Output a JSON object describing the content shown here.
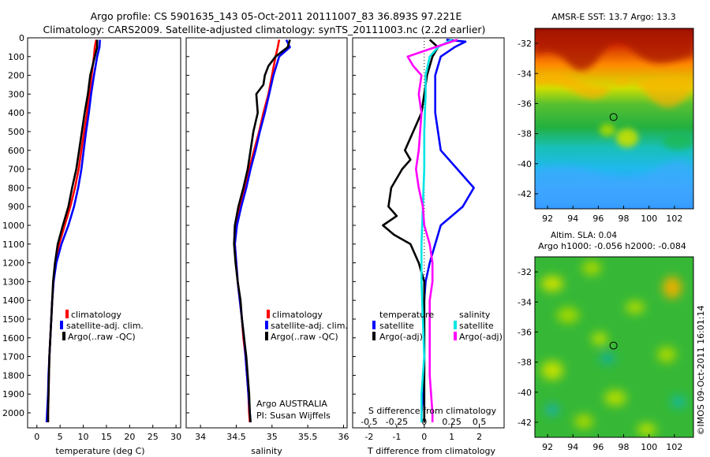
{
  "header": {
    "line1": "Argo profile: CS 5901635_143 05-Oct-2011 20111007_83 36.893S 97.221E",
    "line2": "Climatology: CARS2009. Satellite-adjusted climatology: synTS_20111003.nc (2.2d earlier)"
  },
  "colors": {
    "climatology": "#ff0000",
    "satellite": "#0000ff",
    "argo": "#000000",
    "sat_s": "#00e5e5",
    "argo_s": "#ff00ff"
  },
  "chart_data": [
    {
      "id": "temperature",
      "type": "line",
      "xlabel": "temperature (deg C)",
      "xlim": [
        -2,
        31
      ],
      "xticks": [
        0,
        5,
        10,
        15,
        20,
        25,
        30
      ],
      "ylim": [
        2080,
        0
      ],
      "yticks": [
        0,
        100,
        200,
        300,
        400,
        500,
        600,
        700,
        800,
        900,
        1000,
        1100,
        1200,
        1300,
        1400,
        1500,
        1600,
        1700,
        1800,
        1900,
        2000
      ],
      "legend": [
        "climatology",
        "satellite-adj. clim.",
        "Argo(..raw -QC)"
      ],
      "series": [
        {
          "name": "climatology",
          "color": "#ff0000",
          "points": [
            [
              12.8,
              10
            ],
            [
              12.5,
              50
            ],
            [
              12.3,
              100
            ],
            [
              11.8,
              200
            ],
            [
              11.3,
              300
            ],
            [
              10.8,
              400
            ],
            [
              10.2,
              500
            ],
            [
              9.6,
              600
            ],
            [
              9.0,
              700
            ],
            [
              8.2,
              800
            ],
            [
              7.2,
              900
            ],
            [
              6.0,
              1000
            ],
            [
              4.8,
              1100
            ],
            [
              4.0,
              1200
            ],
            [
              3.6,
              1300
            ],
            [
              3.3,
              1400
            ],
            [
              3.1,
              1500
            ],
            [
              2.9,
              1600
            ],
            [
              2.7,
              1700
            ],
            [
              2.6,
              1800
            ],
            [
              2.5,
              1900
            ],
            [
              2.4,
              2000
            ],
            [
              2.4,
              2050
            ]
          ]
        },
        {
          "name": "satellite-adj. clim.",
          "color": "#0000ff",
          "points": [
            [
              13.6,
              10
            ],
            [
              13.5,
              50
            ],
            [
              13.0,
              100
            ],
            [
              12.3,
              200
            ],
            [
              11.7,
              300
            ],
            [
              11.2,
              400
            ],
            [
              10.6,
              500
            ],
            [
              10.1,
              600
            ],
            [
              9.6,
              700
            ],
            [
              8.9,
              800
            ],
            [
              8.0,
              900
            ],
            [
              6.8,
              1000
            ],
            [
              5.3,
              1100
            ],
            [
              4.2,
              1200
            ],
            [
              3.6,
              1300
            ],
            [
              3.3,
              1400
            ],
            [
              3.1,
              1500
            ],
            [
              2.9,
              1600
            ],
            [
              2.7,
              1700
            ],
            [
              2.5,
              1800
            ],
            [
              2.4,
              1900
            ],
            [
              2.2,
              2000
            ],
            [
              2.1,
              2050
            ]
          ]
        },
        {
          "name": "Argo(..raw -QC)",
          "color": "#000000",
          "points": [
            [
              13.0,
              10
            ],
            [
              13.0,
              50
            ],
            [
              12.5,
              100
            ],
            [
              11.5,
              200
            ],
            [
              11.0,
              300
            ],
            [
              10.3,
              400
            ],
            [
              9.7,
              500
            ],
            [
              9.1,
              600
            ],
            [
              8.5,
              700
            ],
            [
              7.6,
              800
            ],
            [
              6.8,
              900
            ],
            [
              5.6,
              1000
            ],
            [
              4.5,
              1100
            ],
            [
              3.9,
              1200
            ],
            [
              3.5,
              1300
            ],
            [
              3.3,
              1400
            ],
            [
              3.1,
              1500
            ],
            [
              2.9,
              1600
            ],
            [
              2.7,
              1700
            ],
            [
              2.6,
              1800
            ],
            [
              2.5,
              1900
            ],
            [
              2.4,
              2000
            ],
            [
              2.4,
              2050
            ]
          ]
        }
      ]
    },
    {
      "id": "salinity",
      "type": "line",
      "xlabel": "salinity",
      "xlim": [
        33.8,
        36.05
      ],
      "xticks": [
        34,
        34.5,
        35,
        35.5,
        36
      ],
      "ylim": [
        2080,
        0
      ],
      "legend": [
        "climatology",
        "satellite-adj. clim.",
        "Argo(..raw -QC)"
      ],
      "annotation": [
        "Argo AUSTRALIA",
        "PI: Susan Wijffels"
      ],
      "series": [
        {
          "name": "climatology",
          "color": "#ff0000",
          "points": [
            [
              35.1,
              10
            ],
            [
              35.08,
              50
            ],
            [
              35.05,
              100
            ],
            [
              35.0,
              200
            ],
            [
              34.95,
              300
            ],
            [
              34.88,
              400
            ],
            [
              34.82,
              500
            ],
            [
              34.75,
              600
            ],
            [
              34.68,
              700
            ],
            [
              34.62,
              800
            ],
            [
              34.55,
              900
            ],
            [
              34.5,
              1000
            ],
            [
              34.48,
              1100
            ],
            [
              34.5,
              1200
            ],
            [
              34.52,
              1300
            ],
            [
              34.55,
              1400
            ],
            [
              34.58,
              1500
            ],
            [
              34.6,
              1600
            ],
            [
              34.63,
              1700
            ],
            [
              34.65,
              1800
            ],
            [
              34.67,
              1900
            ],
            [
              34.68,
              2000
            ],
            [
              34.69,
              2050
            ]
          ]
        },
        {
          "name": "satellite-adj. clim.",
          "color": "#0000ff",
          "points": [
            [
              35.2,
              10
            ],
            [
              35.25,
              50
            ],
            [
              35.1,
              100
            ],
            [
              35.02,
              200
            ],
            [
              34.96,
              300
            ],
            [
              34.9,
              400
            ],
            [
              34.83,
              500
            ],
            [
              34.77,
              600
            ],
            [
              34.7,
              700
            ],
            [
              34.64,
              800
            ],
            [
              34.57,
              900
            ],
            [
              34.51,
              1000
            ],
            [
              34.48,
              1100
            ],
            [
              34.5,
              1200
            ],
            [
              34.52,
              1300
            ],
            [
              34.55,
              1400
            ],
            [
              34.58,
              1500
            ],
            [
              34.61,
              1600
            ],
            [
              34.63,
              1700
            ],
            [
              34.65,
              1800
            ],
            [
              34.67,
              1900
            ],
            [
              34.69,
              2000
            ],
            [
              34.7,
              2050
            ]
          ]
        },
        {
          "name": "Argo(..raw -QC)",
          "color": "#000000",
          "points": [
            [
              35.25,
              10
            ],
            [
              35.22,
              50
            ],
            [
              35.05,
              100
            ],
            [
              34.95,
              150
            ],
            [
              34.9,
              200
            ],
            [
              34.88,
              250
            ],
            [
              34.78,
              300
            ],
            [
              34.8,
              400
            ],
            [
              34.74,
              500
            ],
            [
              34.7,
              600
            ],
            [
              34.66,
              700
            ],
            [
              34.6,
              800
            ],
            [
              34.53,
              900
            ],
            [
              34.48,
              1000
            ],
            [
              34.47,
              1100
            ],
            [
              34.49,
              1200
            ],
            [
              34.52,
              1300
            ],
            [
              34.56,
              1400
            ],
            [
              34.58,
              1500
            ],
            [
              34.61,
              1600
            ],
            [
              34.64,
              1700
            ],
            [
              34.66,
              1800
            ],
            [
              34.68,
              1900
            ],
            [
              34.69,
              2000
            ],
            [
              34.7,
              2050
            ]
          ]
        }
      ]
    },
    {
      "id": "differences",
      "type": "line",
      "xlabel": "T difference from climatology",
      "xlabel_top": "S difference from climatology",
      "xlim": [
        -2.6,
        2.9
      ],
      "xticks": [
        -2,
        -1,
        0,
        1,
        2
      ],
      "xtick_labels_top": [
        "-0.5",
        "-0.25",
        "0",
        "0.25",
        "0.5"
      ],
      "ylim": [
        2080,
        0
      ],
      "legend_temperature": {
        "heading": "temperature",
        "items": [
          "satellite",
          "Argo(-adj)"
        ]
      },
      "legend_salinity": {
        "heading": "salinity",
        "items": [
          "satellite",
          "Argo(-adj)"
        ]
      },
      "series": [
        {
          "name": "satellite",
          "group": "temperature",
          "color": "#0000ff",
          "points": [
            [
              0.8,
              10
            ],
            [
              1.5,
              20
            ],
            [
              1.1,
              50
            ],
            [
              0.6,
              100
            ],
            [
              0.4,
              200
            ],
            [
              0.4,
              300
            ],
            [
              0.4,
              400
            ],
            [
              0.5,
              500
            ],
            [
              0.6,
              600
            ],
            [
              1.2,
              700
            ],
            [
              1.8,
              800
            ],
            [
              1.4,
              900
            ],
            [
              1.0,
              950
            ],
            [
              0.6,
              1000
            ],
            [
              0.4,
              1100
            ],
            [
              0.2,
              1200
            ],
            [
              0.05,
              1300
            ],
            [
              0.0,
              1400
            ],
            [
              0.0,
              1600
            ],
            [
              0.0,
              1800
            ],
            [
              -0.1,
              2000
            ],
            [
              -0.1,
              2050
            ]
          ]
        },
        {
          "name": "Argo(-adj)",
          "group": "temperature",
          "color": "#000000",
          "points": [
            [
              0.2,
              10
            ],
            [
              0.5,
              50
            ],
            [
              0.3,
              100
            ],
            [
              0.1,
              200
            ],
            [
              0.0,
              300
            ],
            [
              -0.1,
              400
            ],
            [
              -0.4,
              500
            ],
            [
              -0.7,
              600
            ],
            [
              -0.5,
              650
            ],
            [
              -0.8,
              700
            ],
            [
              -1.2,
              800
            ],
            [
              -1.3,
              900
            ],
            [
              -1.0,
              950
            ],
            [
              -1.5,
              1000
            ],
            [
              -1.1,
              1050
            ],
            [
              -0.5,
              1100
            ],
            [
              -0.2,
              1200
            ],
            [
              0.0,
              1300
            ],
            [
              0.0,
              2050
            ]
          ]
        },
        {
          "name": "satellite",
          "group": "salinity",
          "color": "#00e5e5",
          "points": [
            [
              1.0,
              10
            ],
            [
              0.5,
              50
            ],
            [
              0.2,
              100
            ],
            [
              0.05,
              200
            ],
            [
              0.05,
              300
            ],
            [
              0.0,
              500
            ],
            [
              0.0,
              700
            ],
            [
              -0.05,
              900
            ],
            [
              -0.1,
              1100
            ],
            [
              -0.1,
              1300
            ],
            [
              -0.05,
              1500
            ],
            [
              0.0,
              1700
            ],
            [
              -0.1,
              1900
            ],
            [
              -0.1,
              2050
            ]
          ]
        },
        {
          "name": "Argo(-adj)",
          "group": "salinity",
          "color": "#ff00ff",
          "points": [
            [
              1.2,
              10
            ],
            [
              0.4,
              50
            ],
            [
              -0.6,
              100
            ],
            [
              -0.4,
              150
            ],
            [
              -0.1,
              200
            ],
            [
              -0.2,
              300
            ],
            [
              -0.1,
              400
            ],
            [
              -0.2,
              600
            ],
            [
              -0.3,
              700
            ],
            [
              -0.2,
              800
            ],
            [
              -0.05,
              900
            ],
            [
              0.0,
              1000
            ],
            [
              0.2,
              1100
            ],
            [
              0.3,
              1200
            ],
            [
              0.3,
              1300
            ],
            [
              0.2,
              1400
            ],
            [
              0.2,
              1600
            ],
            [
              0.2,
              1800
            ],
            [
              0.3,
              2000
            ],
            [
              0.3,
              2050
            ]
          ]
        }
      ]
    },
    {
      "id": "sst_map",
      "type": "heatmap",
      "title": "AMSR-E SST: 13.7 Argo: 13.3",
      "xlim": [
        91,
        103.5
      ],
      "ylim": [
        -43,
        -31
      ],
      "xticks": [
        92,
        94,
        96,
        98,
        100,
        102
      ],
      "yticks": [
        -32,
        -34,
        -36,
        -38,
        -40,
        -42
      ],
      "marker": {
        "lon": 97.2,
        "lat": -36.9
      }
    },
    {
      "id": "sla_map",
      "type": "heatmap",
      "title": "Altim. SLA: 0.04",
      "subtitle": "Argo h1000: -0.056 h2000: -0.084",
      "xlim": [
        91,
        103.5
      ],
      "ylim": [
        -43,
        -31
      ],
      "xticks": [
        92,
        94,
        96,
        98,
        100,
        102
      ],
      "yticks": [
        -32,
        -34,
        -36,
        -38,
        -40,
        -42
      ],
      "marker": {
        "lon": 97.2,
        "lat": -36.9
      }
    }
  ],
  "credit": "©IMOS 09-Oct-2011 16:01:14"
}
